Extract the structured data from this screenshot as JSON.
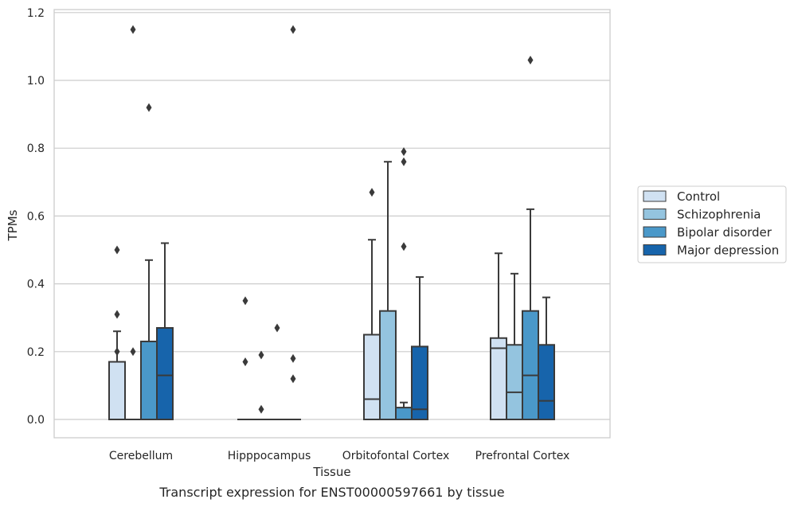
{
  "chart_data": {
    "type": "boxplot",
    "caption": "Transcript expression for ENST00000597661 by tissue",
    "xlabel": "Tissue",
    "ylabel": "TPMs",
    "ylim": [
      -0.055,
      1.21
    ],
    "yticks": [
      "0.0",
      "0.2",
      "0.4",
      "0.6",
      "0.8",
      "1.0",
      "1.2"
    ],
    "ytick_values": [
      0.0,
      0.2,
      0.4,
      0.6,
      0.8,
      1.0,
      1.2
    ],
    "grid": true,
    "legend_placement": "right",
    "categories": [
      "Cerebellum",
      "Hipppocampus",
      "Orbitofontal Cortex",
      "Prefrontal Cortex"
    ],
    "series": [
      {
        "name": "Control",
        "color": "#d0e1f2",
        "boxes": [
          {
            "category": "Cerebellum",
            "q1": 0.0,
            "median": 0.0,
            "q3": 0.17,
            "whisker_low": 0.0,
            "whisker_high": 0.26,
            "outliers": [
              0.5,
              0.31,
              0.2
            ]
          },
          {
            "category": "Hipppocampus",
            "q1": 0.0,
            "median": 0.0,
            "q3": 0.0,
            "whisker_low": 0.0,
            "whisker_high": 0.0,
            "outliers": [
              0.35,
              0.17
            ]
          },
          {
            "category": "Orbitofontal Cortex",
            "q1": 0.0,
            "median": 0.06,
            "q3": 0.25,
            "whisker_low": 0.0,
            "whisker_high": 0.53,
            "outliers": [
              0.67
            ]
          },
          {
            "category": "Prefrontal Cortex",
            "q1": 0.0,
            "median": 0.21,
            "q3": 0.24,
            "whisker_low": 0.0,
            "whisker_high": 0.49,
            "outliers": []
          }
        ]
      },
      {
        "name": "Schizophrenia",
        "color": "#94c4df",
        "boxes": [
          {
            "category": "Cerebellum",
            "q1": 0.0,
            "median": 0.0,
            "q3": 0.0,
            "whisker_low": 0.0,
            "whisker_high": 0.0,
            "outliers": [
              1.15,
              0.2
            ]
          },
          {
            "category": "Hipppocampus",
            "q1": 0.0,
            "median": 0.0,
            "q3": 0.0,
            "whisker_low": 0.0,
            "whisker_high": 0.0,
            "outliers": [
              0.19,
              0.03
            ]
          },
          {
            "category": "Orbitofontal Cortex",
            "q1": 0.0,
            "median": 0.0,
            "q3": 0.32,
            "whisker_low": 0.0,
            "whisker_high": 0.76,
            "outliers": []
          },
          {
            "category": "Prefrontal Cortex",
            "q1": 0.0,
            "median": 0.08,
            "q3": 0.22,
            "whisker_low": 0.0,
            "whisker_high": 0.43,
            "outliers": []
          }
        ]
      },
      {
        "name": "Bipolar disorder",
        "color": "#4a98c9",
        "boxes": [
          {
            "category": "Cerebellum",
            "q1": 0.0,
            "median": 0.0,
            "q3": 0.23,
            "whisker_low": 0.0,
            "whisker_high": 0.47,
            "outliers": [
              0.92
            ]
          },
          {
            "category": "Hipppocampus",
            "q1": 0.0,
            "median": 0.0,
            "q3": 0.0,
            "whisker_low": 0.0,
            "whisker_high": 0.0,
            "outliers": [
              0.27
            ]
          },
          {
            "category": "Orbitofontal Cortex",
            "q1": 0.0,
            "median": 0.0,
            "q3": 0.035,
            "whisker_low": 0.0,
            "whisker_high": 0.05,
            "outliers": [
              0.79,
              0.76,
              0.51
            ]
          },
          {
            "category": "Prefrontal Cortex",
            "q1": 0.0,
            "median": 0.13,
            "q3": 0.32,
            "whisker_low": 0.0,
            "whisker_high": 0.62,
            "outliers": [
              1.06
            ]
          }
        ]
      },
      {
        "name": "Major depression",
        "color": "#1764ab",
        "boxes": [
          {
            "category": "Cerebellum",
            "q1": 0.0,
            "median": 0.13,
            "q3": 0.27,
            "whisker_low": 0.0,
            "whisker_high": 0.52,
            "outliers": []
          },
          {
            "category": "Hipppocampus",
            "q1": 0.0,
            "median": 0.0,
            "q3": 0.0,
            "whisker_low": 0.0,
            "whisker_high": 0.0,
            "outliers": [
              1.15,
              0.18,
              0.12
            ]
          },
          {
            "category": "Orbitofontal Cortex",
            "q1": 0.0,
            "median": 0.03,
            "q3": 0.215,
            "whisker_low": 0.0,
            "whisker_high": 0.42,
            "outliers": []
          },
          {
            "category": "Prefrontal Cortex",
            "q1": 0.0,
            "median": 0.055,
            "q3": 0.22,
            "whisker_low": 0.0,
            "whisker_high": 0.36,
            "outliers": []
          }
        ]
      }
    ]
  }
}
